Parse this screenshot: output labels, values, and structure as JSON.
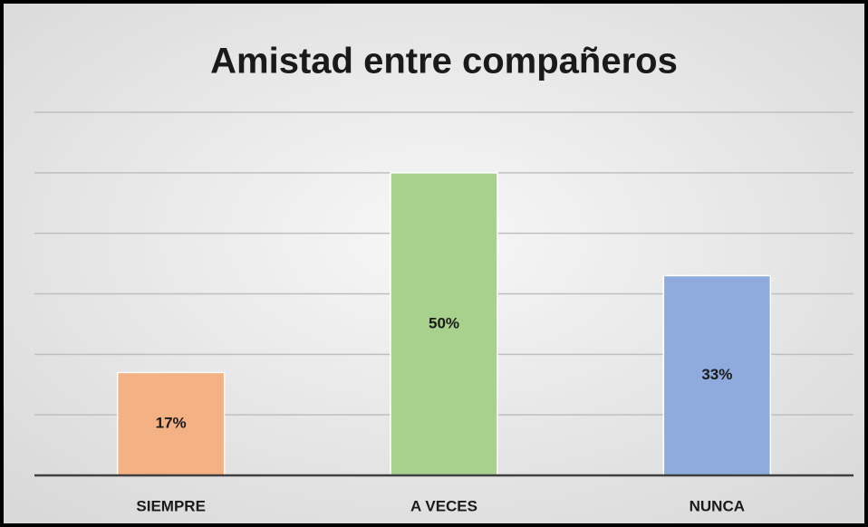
{
  "chart_data": {
    "type": "bar",
    "title": "Amistad entre compañeros",
    "categories": [
      "SIEMPRE",
      "A VECES",
      "NUNCA"
    ],
    "values": [
      17,
      50,
      33
    ],
    "value_labels": [
      "17%",
      "50%",
      "33%"
    ],
    "colors": [
      "#f4b183",
      "#a9d18e",
      "#8faadc"
    ],
    "ylim": [
      0,
      60
    ],
    "yticks": [
      0,
      10,
      20,
      30,
      40,
      50,
      60
    ],
    "grid": true
  }
}
